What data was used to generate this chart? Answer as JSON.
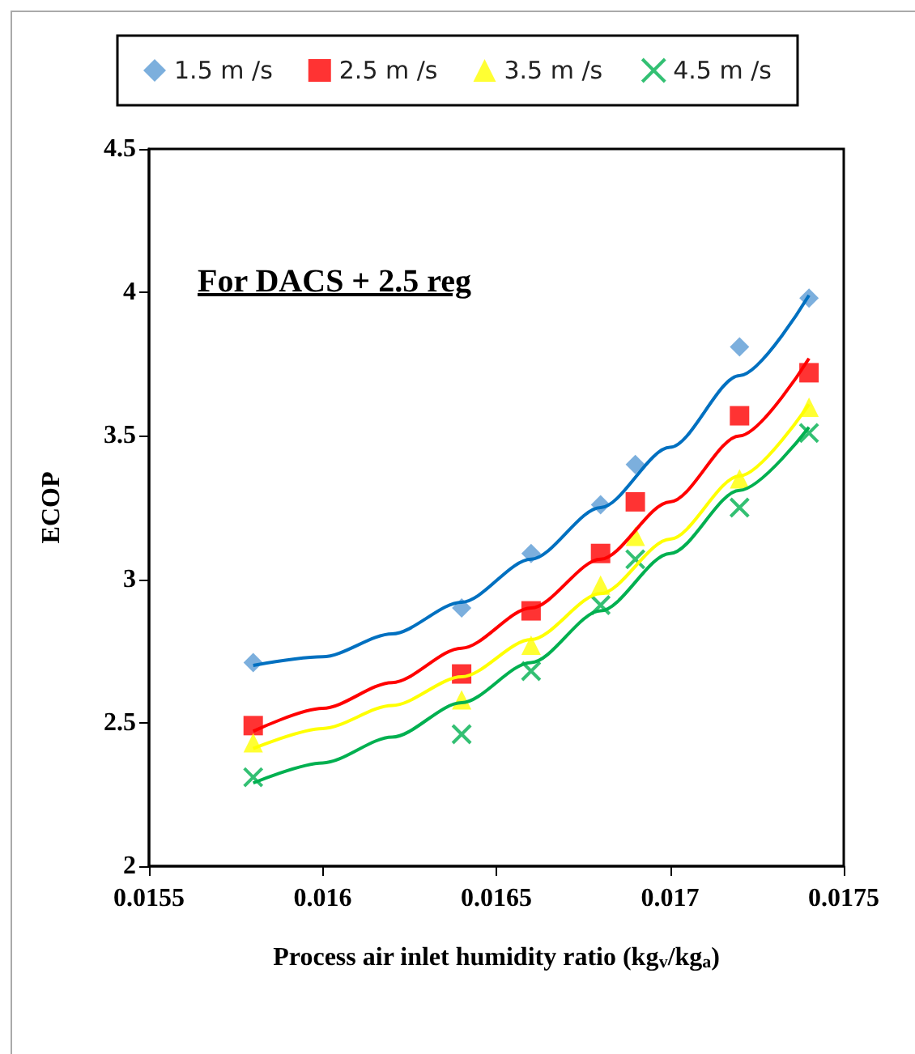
{
  "chart_data": {
    "type": "scatter",
    "xlabel": "Process air inlet humidity ratio (kg$_{v}$/kg$_{a}$)",
    "ylabel": "ECOP",
    "annotations": [
      "For DACS + 2.5 reg"
    ],
    "x": [
      0.0158,
      0.0164,
      0.0166,
      0.0168,
      0.0169,
      0.0172,
      0.0174
    ],
    "series": [
      {
        "name": "1.5 m /s",
        "color": "#5b9bd5",
        "marker": "diamond",
        "values": [
          2.71,
          2.9,
          3.09,
          3.26,
          3.4,
          3.81,
          3.98
        ]
      },
      {
        "name": "2.5 m /s",
        "color": "#ff0000",
        "marker": "square",
        "values": [
          2.49,
          2.67,
          2.89,
          3.09,
          3.27,
          3.57,
          3.72
        ]
      },
      {
        "name": "3.5 m /s",
        "color": "#ffff00",
        "marker": "triangle",
        "values": [
          2.43,
          2.58,
          2.77,
          2.98,
          3.15,
          3.35,
          3.6
        ]
      },
      {
        "name": "4.5 m /s",
        "color": "#00b050",
        "marker": "cross",
        "values": [
          2.31,
          2.46,
          2.68,
          2.91,
          3.07,
          3.25,
          3.51
        ]
      },
      {
        "type": "line",
        "color": "#0070c0",
        "marker": "none",
        "x": [
          0.0158,
          0.016,
          0.0162,
          0.0164,
          0.0166,
          0.0168,
          0.017,
          0.0172,
          0.0174
        ],
        "values": [
          2.7,
          2.73,
          2.81,
          2.92,
          3.07,
          3.25,
          3.46,
          3.71,
          3.99
        ]
      },
      {
        "type": "line",
        "color": "#ff0000",
        "marker": "none",
        "x": [
          0.0158,
          0.016,
          0.0162,
          0.0164,
          0.0166,
          0.0168,
          0.017,
          0.0172,
          0.0174
        ],
        "values": [
          2.47,
          2.55,
          2.64,
          2.76,
          2.9,
          3.07,
          3.27,
          3.5,
          3.77
        ]
      },
      {
        "type": "line",
        "color": "#ffff00",
        "marker": "none",
        "x": [
          0.0158,
          0.016,
          0.0162,
          0.0164,
          0.0166,
          0.0168,
          0.017,
          0.0172,
          0.0174
        ],
        "values": [
          2.41,
          2.48,
          2.56,
          2.66,
          2.79,
          2.95,
          3.14,
          3.36,
          3.61
        ]
      },
      {
        "type": "line",
        "color": "#00b050",
        "marker": "none",
        "x": [
          0.0158,
          0.016,
          0.0162,
          0.0164,
          0.0166,
          0.0168,
          0.017,
          0.0172,
          0.0174
        ],
        "values": [
          2.29,
          2.36,
          2.45,
          2.57,
          2.71,
          2.89,
          3.09,
          3.31,
          3.53
        ]
      }
    ],
    "xlim": [
      0.0155,
      0.0175
    ],
    "xticks": [
      0.0155,
      0.016,
      0.0165,
      0.017,
      0.0175
    ],
    "ylim": [
      2,
      4.5
    ],
    "yticks": [
      2,
      2.5,
      3,
      3.5,
      4,
      4.5
    ],
    "grid": false,
    "legend": "top"
  }
}
